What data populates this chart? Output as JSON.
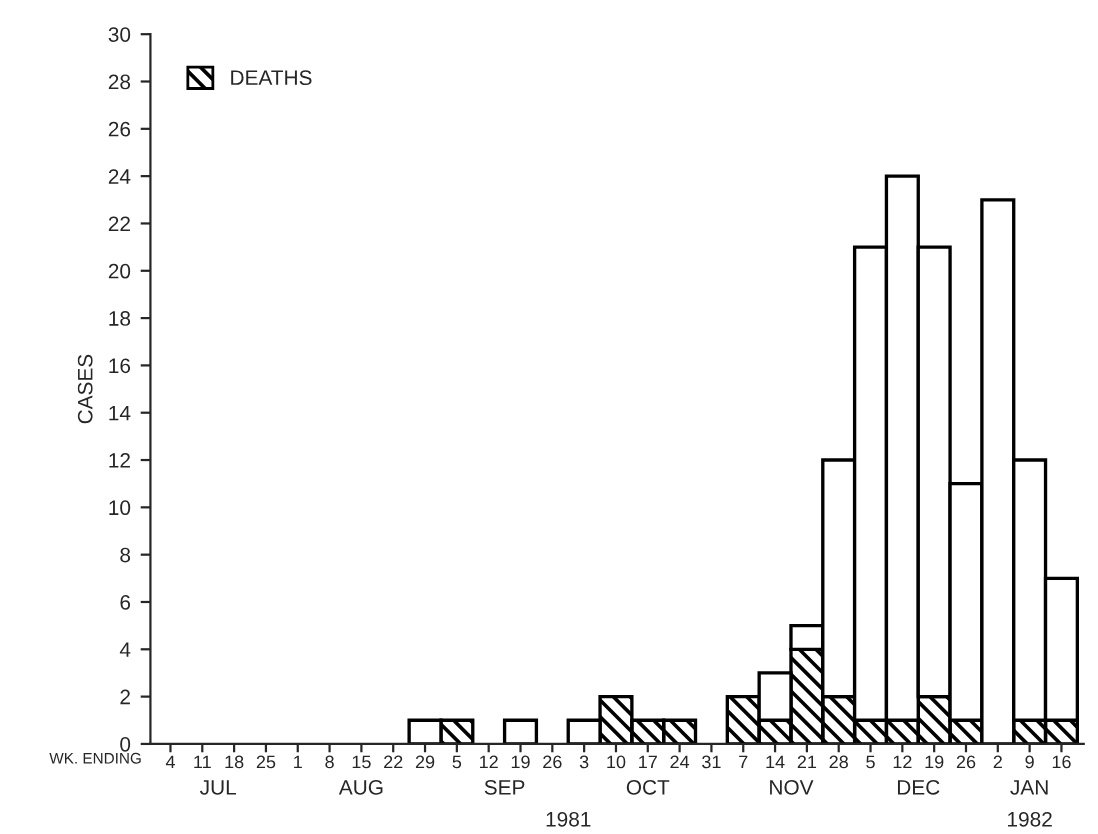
{
  "chart_data": {
    "type": "bar",
    "ylabel": "CASES",
    "stacked": true,
    "categories": [
      "4",
      "11",
      "18",
      "25",
      "1",
      "8",
      "15",
      "22",
      "29",
      "5",
      "12",
      "19",
      "26",
      "3",
      "10",
      "17",
      "24",
      "31",
      "7",
      "14",
      "21",
      "28",
      "5",
      "12",
      "19",
      "26",
      "2",
      "9",
      "16"
    ],
    "series": [
      {
        "name": "DEATHS",
        "color": "#000000",
        "values": [
          0,
          0,
          0,
          0,
          0,
          0,
          0,
          0,
          0,
          1,
          0,
          0,
          0,
          0,
          2,
          1,
          1,
          0,
          2,
          1,
          4,
          2,
          1,
          1,
          2,
          1,
          0,
          1,
          1
        ]
      },
      {
        "color": "#ffffff",
        "values": [
          0,
          0,
          0,
          0,
          0,
          0,
          0,
          0,
          1,
          0,
          0,
          1,
          0,
          1,
          0,
          0,
          0,
          0,
          0,
          2,
          1,
          10,
          20,
          23,
          19,
          10,
          23,
          11,
          6
        ]
      }
    ],
    "ylim": [
      0,
      30
    ],
    "yticks": [
      0,
      2,
      4,
      6,
      8,
      10,
      12,
      14,
      16,
      18,
      20,
      22,
      24,
      26,
      28,
      30
    ],
    "legend": "top left",
    "grid": false,
    "annotations": [
      "WK. ENDING",
      "JUL",
      "AUG",
      "SEP",
      "OCT",
      "NOV",
      "DEC",
      "JAN",
      "1981",
      "1982"
    ]
  }
}
